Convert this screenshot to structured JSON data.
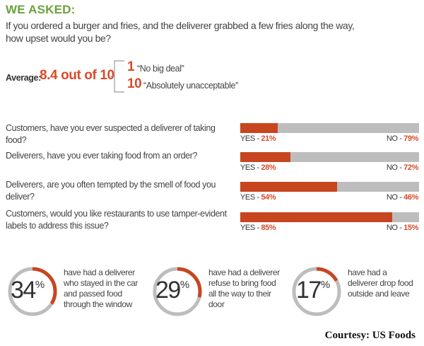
{
  "header": {
    "heading": "WE ASKED:",
    "question": "If you ordered a burger and fries, and the deliverer grabbed a few fries along the way, how upset would you be?"
  },
  "average": {
    "label": "Average:",
    "value": "8.4 out of 10",
    "scale_low_number": "1",
    "scale_low_text": "“No big deal”",
    "scale_high_number": "10",
    "scale_high_text": "“Absolutely unacceptable”"
  },
  "colors": {
    "accent": "#c7461f",
    "track": "#bdbdbd",
    "heading": "#6aa33a"
  },
  "chart_data": {
    "type": "bar",
    "orientation": "horizontal-stacked",
    "categories": [
      "Customers, have you ever suspected a deliverer of taking food?",
      "Deliverers, have you ever taking food from an order?",
      "Deliverers, are you often tempted by the smell of food you deliver?",
      "Customers, would you like restaurants to use tamper-evident labels to address this issue?"
    ],
    "series": [
      {
        "name": "YES",
        "values": [
          21,
          28,
          54,
          85
        ]
      },
      {
        "name": "NO",
        "values": [
          79,
          72,
          46,
          15
        ]
      }
    ],
    "yes_labels": [
      "YES - ",
      "YES - ",
      "YES - ",
      "YES - "
    ],
    "yes_values": [
      "21%",
      "28%",
      "54%",
      "85%"
    ],
    "no_labels": [
      "NO - ",
      "NO - ",
      "NO - ",
      "NO - "
    ],
    "no_values": [
      "79%",
      "72%",
      "46%",
      "15%"
    ],
    "xlim": [
      0,
      100
    ]
  },
  "stats": [
    {
      "value": 34,
      "number": "34",
      "percent": "%",
      "text": "have had a deliverer who stayed in the car and passed food through the window"
    },
    {
      "value": 29,
      "number": "29",
      "percent": "%",
      "text": "have had a deliverer refuse to bring food all the way to their door"
    },
    {
      "value": 17,
      "number": "17",
      "percent": "%",
      "text": "have had a deliverer drop food outside and leave"
    }
  ],
  "credit": "Courtesy: US Foods"
}
